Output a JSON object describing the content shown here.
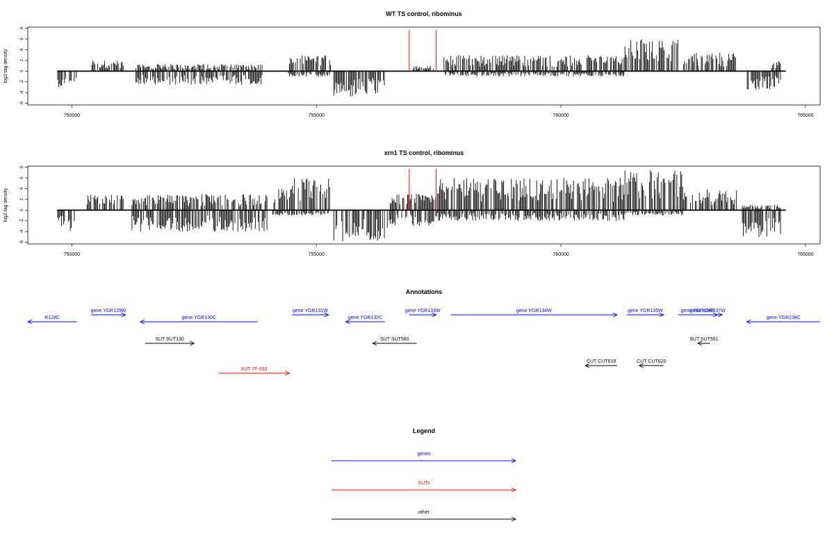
{
  "colors": {
    "genes": "#0000ff",
    "xuts": "#ff0000",
    "other": "#000000",
    "bars": "#000000",
    "marker": "#ff0000"
  },
  "chart_data": [
    {
      "type": "bar",
      "title": "WT TS control, ribominus",
      "ylabel": "log2 tag density",
      "xlim": [
        749100,
        765300
      ],
      "ylim": [
        -6.3,
        8.2
      ],
      "xticks": [
        750000,
        755000,
        760000,
        765000
      ],
      "yticks": [
        8,
        6,
        4,
        2,
        0,
        -2,
        -4,
        -6
      ],
      "baseline_range": [
        749700,
        764600
      ],
      "red_markers": [
        756900,
        757450
      ],
      "marker_height": 7.7,
      "segments": [
        {
          "x0": 749700,
          "x1": 750100,
          "pos": 0,
          "neg": 3
        },
        {
          "x0": 750400,
          "x1": 751100,
          "pos": 2,
          "neg": 0
        },
        {
          "x0": 751300,
          "x1": 753900,
          "pos": 1.3,
          "neg": 2.6
        },
        {
          "x0": 754400,
          "x1": 755300,
          "pos": 3,
          "neg": 1
        },
        {
          "x0": 755350,
          "x1": 756400,
          "pos": 0,
          "neg": 5
        },
        {
          "x0": 756950,
          "x1": 757400,
          "pos": 1,
          "neg": 0
        },
        {
          "x0": 757600,
          "x1": 761300,
          "pos": 3,
          "neg": 1
        },
        {
          "x0": 761300,
          "x1": 762400,
          "pos": 6,
          "neg": 0
        },
        {
          "x0": 762500,
          "x1": 763600,
          "pos": 3.5,
          "neg": 0
        },
        {
          "x0": 763800,
          "x1": 764300,
          "pos": 0,
          "neg": 3.5
        },
        {
          "x0": 764300,
          "x1": 764500,
          "pos": 2,
          "neg": 3
        }
      ]
    },
    {
      "type": "bar",
      "title": "xrn1 TS control, ribominus",
      "ylabel": "log2 tag density",
      "xlim": [
        749100,
        765300
      ],
      "ylim": [
        -6.3,
        8.2
      ],
      "xticks": [
        750000,
        755000,
        760000,
        765000
      ],
      "yticks": [
        8,
        6,
        4,
        2,
        0,
        -2,
        -4,
        -6
      ],
      "baseline_range": [
        749700,
        764600
      ],
      "red_markers": [
        756900,
        757450
      ],
      "marker_height": 7.7,
      "segments": [
        {
          "x0": 749700,
          "x1": 750100,
          "pos": 0,
          "neg": 4
        },
        {
          "x0": 750300,
          "x1": 751100,
          "pos": 3,
          "neg": 0
        },
        {
          "x0": 751200,
          "x1": 754000,
          "pos": 3,
          "neg": 4
        },
        {
          "x0": 754100,
          "x1": 754500,
          "pos": 4,
          "neg": 1
        },
        {
          "x0": 754500,
          "x1": 755300,
          "pos": 6,
          "neg": 1
        },
        {
          "x0": 755350,
          "x1": 756500,
          "pos": 0,
          "neg": 6
        },
        {
          "x0": 756500,
          "x1": 757450,
          "pos": 3,
          "neg": 3
        },
        {
          "x0": 757450,
          "x1": 761300,
          "pos": 6,
          "neg": 2
        },
        {
          "x0": 761300,
          "x1": 762500,
          "pos": 7.5,
          "neg": 1
        },
        {
          "x0": 762500,
          "x1": 763600,
          "pos": 4,
          "neg": 0
        },
        {
          "x0": 763700,
          "x1": 764500,
          "pos": 1,
          "neg": 5
        }
      ]
    }
  ],
  "annotations": {
    "title": "Annotations",
    "features": [
      {
        "label": "R128C",
        "x0": 749100,
        "x1": 750100,
        "direction": "left",
        "type": "genes",
        "row": 1
      },
      {
        "label": "gene YGR129W",
        "x0": 750400,
        "x1": 751100,
        "direction": "right",
        "type": "genes",
        "row": 0
      },
      {
        "label": "gene YGR130C",
        "x0": 751400,
        "x1": 753800,
        "direction": "left",
        "type": "genes",
        "row": 1
      },
      {
        "label": "gene YGR131W",
        "x0": 754500,
        "x1": 755250,
        "direction": "right",
        "type": "genes",
        "row": 0
      },
      {
        "label": "gene YGR132C",
        "x0": 755600,
        "x1": 756400,
        "direction": "left",
        "type": "genes",
        "row": 1
      },
      {
        "label": "gene YGR133W",
        "x0": 756900,
        "x1": 757450,
        "direction": "right",
        "type": "genes",
        "row": 0
      },
      {
        "label": "gene YGR134W",
        "x0": 757750,
        "x1": 761150,
        "direction": "right",
        "type": "genes",
        "row": 0
      },
      {
        "label": "gene YGR135W",
        "x0": 761350,
        "x1": 762100,
        "direction": "right",
        "type": "genes",
        "row": 0
      },
      {
        "label": "gene YGR136R",
        "x0": 762400,
        "x1": 763200,
        "direction": "right",
        "type": "genes",
        "row": 0
      },
      {
        "label": "gene YGR137W",
        "x0": 762700,
        "x1": 763300,
        "direction": "right",
        "type": "genes",
        "row": 0
      },
      {
        "label": "gene YGR138C",
        "x0": 763800,
        "x1": 765300,
        "direction": "left",
        "type": "genes",
        "row": 1
      },
      {
        "label": "SUT SUT130",
        "x0": 751500,
        "x1": 752500,
        "direction": "right",
        "type": "other",
        "row": 2
      },
      {
        "label": "SUT SUT560",
        "x0": 756150,
        "x1": 757050,
        "direction": "left",
        "type": "other",
        "row": 2
      },
      {
        "label": "SUT SUT561",
        "x0": 762800,
        "x1": 763050,
        "direction": "left",
        "type": "other",
        "row": 2
      },
      {
        "label": "CUT CUT619",
        "x0": 760500,
        "x1": 761150,
        "direction": "left",
        "type": "other",
        "row": 3
      },
      {
        "label": "CUT CUT620",
        "x0": 761600,
        "x1": 762100,
        "direction": "left",
        "type": "other",
        "row": 3
      },
      {
        "label": "XUT 7F-333",
        "x0": 753000,
        "x1": 754450,
        "direction": "right",
        "type": "xuts",
        "row": 4
      }
    ]
  },
  "legend": {
    "title": "Legend",
    "items": [
      {
        "label": "genes",
        "type": "genes"
      },
      {
        "label": "XUTs",
        "type": "xuts"
      },
      {
        "label": "other",
        "type": "other"
      }
    ]
  }
}
